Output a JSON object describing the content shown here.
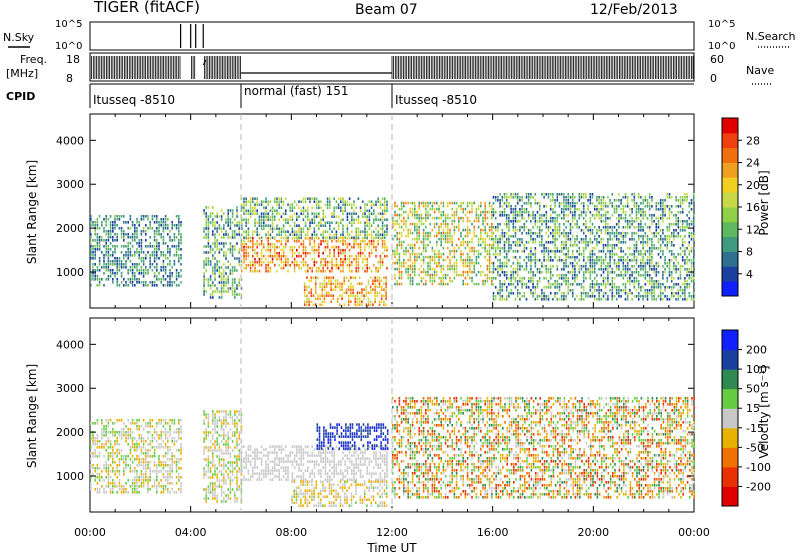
{
  "header": {
    "radar_title": "TIGER (fitACF)",
    "beam_label": "Beam 07",
    "date_label": "12/Feb/2013"
  },
  "status_panels": {
    "nsky_label": "N.Sky",
    "nsky_ticks": [
      "10^5",
      "10^0"
    ],
    "nsearch_label": "N.Search",
    "nsearch_ticks": [
      "10^5",
      "10^0"
    ],
    "freq_label_line1": "Freq.",
    "freq_label_line2": "[MHz]",
    "freq_ticks": [
      "18",
      "8"
    ],
    "nave_label": "Nave",
    "nave_ticks": [
      "60",
      "0"
    ],
    "cpid_label": "CPID",
    "cpid_segments": [
      {
        "label": "Itusseq -8510",
        "start_hour": 0,
        "end_hour": 6
      },
      {
        "label": "normal (fast) 151",
        "start_hour": 6,
        "end_hour": 12
      },
      {
        "label": "Itusseq -8510",
        "start_hour": 12,
        "end_hour": 24
      }
    ],
    "gaps_hours": [
      [
        3.6,
        4.0
      ],
      [
        4.2,
        4.5
      ]
    ]
  },
  "colorbars": {
    "power": {
      "label": "Power [dB]",
      "ticks": [
        "28",
        "24",
        "20",
        "16",
        "12",
        "8",
        "4"
      ],
      "colors": [
        "#1020ff",
        "#1b3fa0",
        "#2e6e8e",
        "#3f9a7e",
        "#5fb860",
        "#8fd047",
        "#c8d84a",
        "#f0d020",
        "#f0a020",
        "#f07010",
        "#f04010",
        "#e00000"
      ]
    },
    "velocity": {
      "label": "Velocity [m s⁻¹]",
      "ticks": [
        "200",
        "100",
        "50",
        "15",
        "-15",
        "-50",
        "-100",
        "-200"
      ],
      "colors": [
        "#1020ff",
        "#1b3fa0",
        "#2e8a50",
        "#66cc44",
        "#c8c8c8",
        "#e8b000",
        "#f07000",
        "#e83000",
        "#e00000"
      ]
    }
  },
  "axes": {
    "ylabel": "Slant Range [km]",
    "xlabel": "Time UT",
    "x_ticks": [
      "00:00",
      "04:00",
      "08:00",
      "12:00",
      "16:00",
      "20:00",
      "00:00"
    ],
    "y_ticks": [
      "1000",
      "2000",
      "3000",
      "4000"
    ]
  },
  "chart_data": [
    {
      "type": "heatmap",
      "panel": "power",
      "xlabel": "Time UT",
      "ylabel": "Slant Range [km]",
      "xlim_hours": [
        0,
        24
      ],
      "ylim_km": [
        180,
        4600
      ],
      "colorbar_label": "Power [dB]",
      "clim": [
        0,
        32
      ],
      "regions": [
        {
          "t0": 0.0,
          "t1": 3.6,
          "r0": 700,
          "r1": 2300,
          "vmin": 3,
          "vmax": 14
        },
        {
          "t0": 4.5,
          "t1": 6.0,
          "r0": 400,
          "r1": 2500,
          "vmin": 3,
          "vmax": 18
        },
        {
          "t0": 6.0,
          "t1": 11.8,
          "r0": 1000,
          "r1": 1800,
          "vmin": 16,
          "vmax": 30
        },
        {
          "t0": 6.0,
          "t1": 11.8,
          "r0": 1800,
          "r1": 2700,
          "vmin": 4,
          "vmax": 20
        },
        {
          "t0": 8.5,
          "t1": 11.8,
          "r0": 250,
          "r1": 900,
          "vmin": 16,
          "vmax": 28
        },
        {
          "t0": 12.0,
          "t1": 16.0,
          "r0": 700,
          "r1": 2600,
          "vmin": 8,
          "vmax": 26
        },
        {
          "t0": 16.0,
          "t1": 24.0,
          "r0": 400,
          "r1": 2800,
          "vmin": 3,
          "vmax": 18
        }
      ]
    },
    {
      "type": "heatmap",
      "panel": "velocity",
      "xlabel": "Time UT",
      "ylabel": "Slant Range [km]",
      "xlim_hours": [
        0,
        24
      ],
      "ylim_km": [
        180,
        4600
      ],
      "colorbar_label": "Velocity [m s⁻¹]",
      "clim": [
        -250,
        250
      ],
      "regions": [
        {
          "t0": 0.0,
          "t1": 3.6,
          "r0": 600,
          "r1": 2300,
          "vmin": -60,
          "vmax": 60
        },
        {
          "t0": 4.5,
          "t1": 6.0,
          "r0": 400,
          "r1": 2500,
          "vmin": -60,
          "vmax": 60
        },
        {
          "t0": 6.0,
          "t1": 11.8,
          "r0": 900,
          "r1": 1700,
          "vmin": -12,
          "vmax": 12
        },
        {
          "t0": 9.0,
          "t1": 11.8,
          "r0": 1600,
          "r1": 2200,
          "vmin": 150,
          "vmax": 240
        },
        {
          "t0": 8.0,
          "t1": 11.8,
          "r0": 300,
          "r1": 900,
          "vmin": -80,
          "vmax": 40
        },
        {
          "t0": 12.0,
          "t1": 24.0,
          "r0": 500,
          "r1": 2800,
          "vmin": -180,
          "vmax": 120
        }
      ]
    }
  ]
}
